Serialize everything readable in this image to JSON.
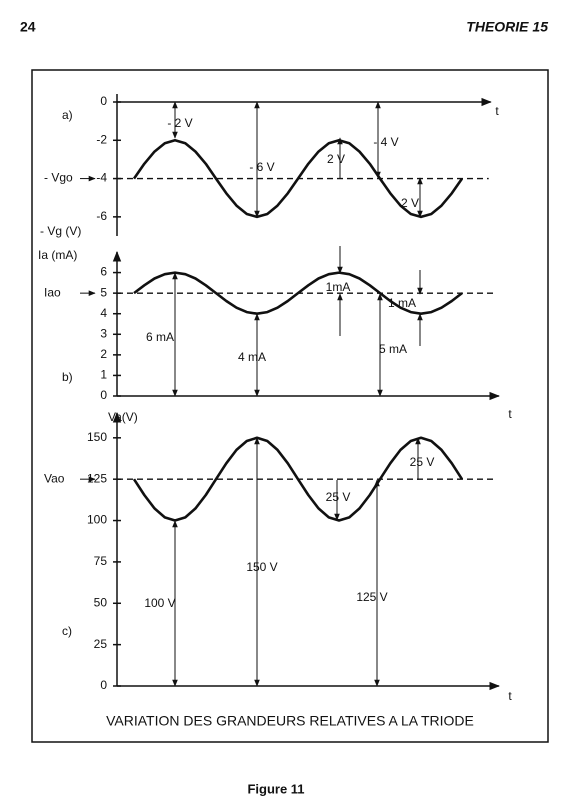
{
  "page": {
    "number": "24",
    "header": "THEORIE 15",
    "frame_title": "VARIATION DES GRANDEURS RELATIVES A LA TRIODE",
    "caption": "Figure 11"
  },
  "chart_data": [
    {
      "type": "line",
      "panel_label": "a)",
      "xlabel": "t",
      "ylabel": "- Vg (V)",
      "color": "#111111",
      "x": [
        0,
        0.25,
        0.5,
        0.75,
        1,
        1.25,
        1.5,
        1.75,
        2,
        2.25,
        2.5,
        2.75,
        3,
        3.25,
        3.5,
        3.75,
        4,
        4.25,
        4.5,
        4.75,
        5,
        5.25,
        5.5,
        5.75,
        6,
        6.25,
        6.5,
        6.75,
        7,
        7.25,
        7.5,
        7.75,
        8
      ],
      "values": [
        -4,
        -3.23,
        -2.59,
        -2.15,
        -2,
        -2.15,
        -2.59,
        -3.23,
        -4,
        -4.77,
        -5.41,
        -5.85,
        -6,
        -5.85,
        -5.41,
        -4.77,
        -4,
        -3.23,
        -2.59,
        -2.15,
        -2,
        -2.15,
        -2.59,
        -3.23,
        -4,
        -4.77,
        -5.41,
        -5.85,
        -6,
        -5.85,
        -5.41,
        -4.77,
        -4
      ],
      "xlim": [
        -0.4,
        8.7
      ],
      "ylim": [
        -7,
        0
      ],
      "yticks": [
        0,
        -2,
        -4,
        -6
      ],
      "reference_line": {
        "value": -4,
        "label": "- Vgo"
      },
      "annotations": [
        "- 2 V",
        "- 6 V",
        "2 V",
        "- 4 V",
        "2 V"
      ]
    },
    {
      "type": "line",
      "panel_label": "b)",
      "xlabel": "t",
      "ylabel": "Ia (mA)",
      "color": "#111111",
      "x": [
        0,
        0.25,
        0.5,
        0.75,
        1,
        1.25,
        1.5,
        1.75,
        2,
        2.25,
        2.5,
        2.75,
        3,
        3.25,
        3.5,
        3.75,
        4,
        4.25,
        4.5,
        4.75,
        5,
        5.25,
        5.5,
        5.75,
        6,
        6.25,
        6.5,
        6.75,
        7,
        7.25,
        7.5,
        7.75,
        8
      ],
      "values": [
        5,
        5.38,
        5.71,
        5.92,
        6,
        5.92,
        5.71,
        5.38,
        5,
        4.62,
        4.29,
        4.08,
        4,
        4.08,
        4.29,
        4.62,
        5,
        5.38,
        5.71,
        5.92,
        6,
        5.92,
        5.71,
        5.38,
        5,
        4.62,
        4.29,
        4.08,
        4,
        4.08,
        4.29,
        4.62,
        5
      ],
      "xlim": [
        -0.4,
        8.9
      ],
      "ylim": [
        0,
        7
      ],
      "yticks": [
        0,
        1,
        2,
        3,
        4,
        5,
        6
      ],
      "reference_line": {
        "value": 5,
        "label": "Iao"
      },
      "annotations": [
        "6 mA",
        "4 mA",
        "1mA",
        "1 mA",
        "5 mA"
      ]
    },
    {
      "type": "line",
      "panel_label": "c)",
      "xlabel": "t",
      "ylabel": "Va(V)",
      "color": "#111111",
      "x": [
        0,
        0.25,
        0.5,
        0.75,
        1,
        1.25,
        1.5,
        1.75,
        2,
        2.25,
        2.5,
        2.75,
        3,
        3.25,
        3.5,
        3.75,
        4,
        4.25,
        4.5,
        4.75,
        5,
        5.25,
        5.5,
        5.75,
        6,
        6.25,
        6.5,
        6.75,
        7,
        7.25,
        7.5,
        7.75,
        8
      ],
      "values": [
        125,
        115.43,
        107.32,
        101.9,
        100,
        101.9,
        107.32,
        115.43,
        125,
        134.57,
        142.68,
        148.1,
        150,
        148.1,
        142.68,
        134.57,
        125,
        115.43,
        107.32,
        101.9,
        100,
        101.9,
        107.32,
        115.43,
        125,
        134.57,
        142.68,
        148.1,
        150,
        148.1,
        142.68,
        134.57,
        125
      ],
      "xlim": [
        -0.4,
        8.9
      ],
      "ylim": [
        0,
        165
      ],
      "yticks": [
        0,
        25,
        50,
        75,
        100,
        125,
        150
      ],
      "reference_line": {
        "value": 125,
        "label": "Vao"
      },
      "annotations": [
        "25 V",
        "25 V",
        "150 V",
        "100 V",
        "125 V"
      ]
    }
  ]
}
